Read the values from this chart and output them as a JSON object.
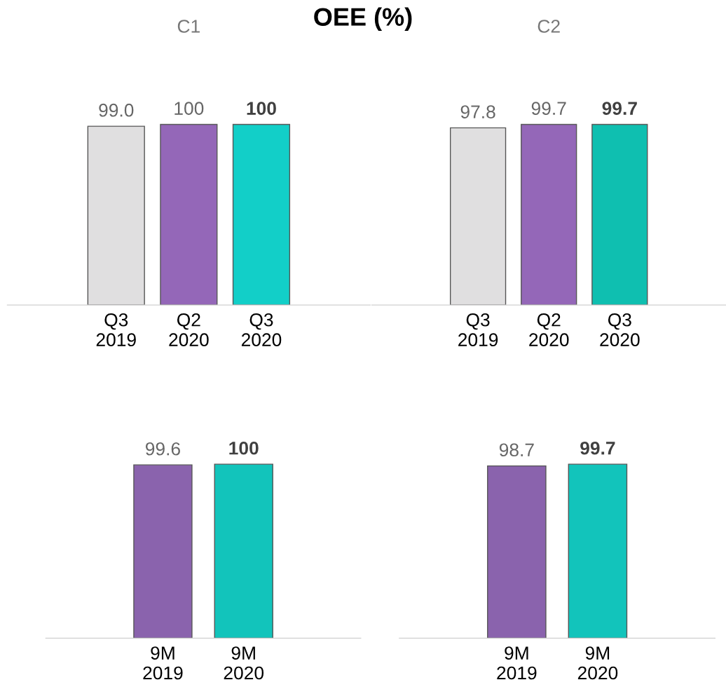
{
  "chart_data": [
    {
      "type": "bar",
      "title": "C1",
      "annotations": [
        "OEE (%)"
      ],
      "categories": [
        "Q3\n2019",
        "Q2\n2020",
        "Q3\n2020"
      ],
      "values": [
        99.0,
        100,
        100
      ],
      "value_labels": [
        "99.0",
        "100",
        "100"
      ],
      "colors": [
        "#e0dfe0",
        "#9467b8",
        "#12cfc8"
      ],
      "tick_labels": "x",
      "grid": false,
      "legend": false
    },
    {
      "type": "bar",
      "title": "C2",
      "categories": [
        "Q3\n2019",
        "Q2\n2020",
        "Q3\n2020"
      ],
      "values": [
        97.8,
        99.7,
        99.7
      ],
      "value_labels": [
        "97.8",
        "99.7",
        "99.7"
      ],
      "colors": [
        "#e0dfe0",
        "#9467b8",
        "#0fbfb0"
      ],
      "tick_labels": "x",
      "grid": false,
      "legend": false
    },
    {
      "type": "bar",
      "categories": [
        "9M\n2019",
        "9M\n2020"
      ],
      "values": [
        99.6,
        100
      ],
      "value_labels": [
        "99.6",
        "100"
      ],
      "colors": [
        "#8a63ad",
        "#12c4bb"
      ],
      "tick_labels": "x",
      "grid": false,
      "legend": false
    },
    {
      "type": "bar",
      "categories": [
        "9M\n2019",
        "9M\n2020"
      ],
      "values": [
        98.7,
        99.7
      ],
      "value_labels": [
        "98.7",
        "99.7"
      ],
      "colors": [
        "#8a63ad",
        "#12c4bb"
      ],
      "tick_labels": "x",
      "grid": false,
      "legend": false
    }
  ]
}
